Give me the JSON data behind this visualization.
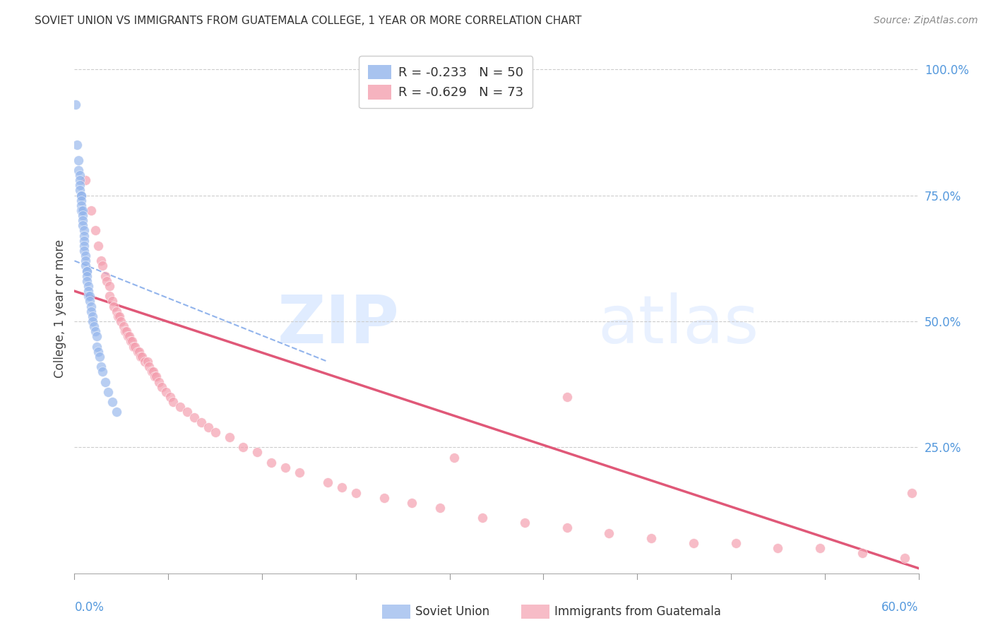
{
  "title": "SOVIET UNION VS IMMIGRANTS FROM GUATEMALA COLLEGE, 1 YEAR OR MORE CORRELATION CHART",
  "source": "Source: ZipAtlas.com",
  "ylabel": "College, 1 year or more",
  "right_yticks": [
    "100.0%",
    "75.0%",
    "50.0%",
    "25.0%"
  ],
  "right_ytick_vals": [
    1.0,
    0.75,
    0.5,
    0.25
  ],
  "blue_color": "#92B4EC",
  "pink_color": "#F4A0B0",
  "blue_line_color": "#3B5EA6",
  "pink_line_color": "#E05878",
  "blue_dashed_color": "#92B4EC",
  "background": "#FFFFFF",
  "grid_color": "#CCCCCC",
  "xlim": [
    0.0,
    0.6
  ],
  "ylim": [
    0.0,
    1.05
  ],
  "soviet_x": [
    0.001,
    0.002,
    0.003,
    0.003,
    0.004,
    0.004,
    0.004,
    0.004,
    0.005,
    0.005,
    0.005,
    0.005,
    0.005,
    0.006,
    0.006,
    0.006,
    0.006,
    0.007,
    0.007,
    0.007,
    0.007,
    0.007,
    0.008,
    0.008,
    0.008,
    0.009,
    0.009,
    0.009,
    0.009,
    0.01,
    0.01,
    0.01,
    0.011,
    0.011,
    0.012,
    0.012,
    0.013,
    0.013,
    0.014,
    0.015,
    0.016,
    0.016,
    0.017,
    0.018,
    0.019,
    0.02,
    0.022,
    0.024,
    0.027,
    0.03
  ],
  "soviet_y": [
    0.93,
    0.85,
    0.82,
    0.8,
    0.79,
    0.78,
    0.77,
    0.76,
    0.75,
    0.75,
    0.74,
    0.73,
    0.72,
    0.72,
    0.71,
    0.7,
    0.69,
    0.68,
    0.67,
    0.66,
    0.65,
    0.64,
    0.63,
    0.62,
    0.61,
    0.6,
    0.6,
    0.59,
    0.58,
    0.57,
    0.56,
    0.55,
    0.55,
    0.54,
    0.53,
    0.52,
    0.51,
    0.5,
    0.49,
    0.48,
    0.47,
    0.45,
    0.44,
    0.43,
    0.41,
    0.4,
    0.38,
    0.36,
    0.34,
    0.32
  ],
  "guatemala_x": [
    0.008,
    0.012,
    0.015,
    0.017,
    0.019,
    0.02,
    0.022,
    0.023,
    0.025,
    0.025,
    0.027,
    0.028,
    0.03,
    0.031,
    0.032,
    0.033,
    0.035,
    0.036,
    0.037,
    0.038,
    0.039,
    0.04,
    0.041,
    0.042,
    0.043,
    0.045,
    0.046,
    0.047,
    0.048,
    0.05,
    0.052,
    0.053,
    0.055,
    0.056,
    0.057,
    0.058,
    0.06,
    0.062,
    0.065,
    0.068,
    0.07,
    0.075,
    0.08,
    0.085,
    0.09,
    0.095,
    0.1,
    0.11,
    0.12,
    0.13,
    0.14,
    0.15,
    0.16,
    0.18,
    0.19,
    0.2,
    0.22,
    0.24,
    0.26,
    0.29,
    0.32,
    0.35,
    0.38,
    0.41,
    0.44,
    0.47,
    0.5,
    0.53,
    0.56,
    0.59,
    0.595,
    0.35,
    0.27
  ],
  "guatemala_y": [
    0.78,
    0.72,
    0.68,
    0.65,
    0.62,
    0.61,
    0.59,
    0.58,
    0.57,
    0.55,
    0.54,
    0.53,
    0.52,
    0.51,
    0.51,
    0.5,
    0.49,
    0.48,
    0.48,
    0.47,
    0.47,
    0.46,
    0.46,
    0.45,
    0.45,
    0.44,
    0.44,
    0.43,
    0.43,
    0.42,
    0.42,
    0.41,
    0.4,
    0.4,
    0.39,
    0.39,
    0.38,
    0.37,
    0.36,
    0.35,
    0.34,
    0.33,
    0.32,
    0.31,
    0.3,
    0.29,
    0.28,
    0.27,
    0.25,
    0.24,
    0.22,
    0.21,
    0.2,
    0.18,
    0.17,
    0.16,
    0.15,
    0.14,
    0.13,
    0.11,
    0.1,
    0.09,
    0.08,
    0.07,
    0.06,
    0.06,
    0.05,
    0.05,
    0.04,
    0.03,
    0.16,
    0.35,
    0.23
  ],
  "blue_trend_x": [
    0.0,
    0.18
  ],
  "blue_trend_y": [
    0.62,
    0.42
  ],
  "pink_trend_x": [
    0.0,
    0.6
  ],
  "pink_trend_y": [
    0.56,
    0.01
  ]
}
